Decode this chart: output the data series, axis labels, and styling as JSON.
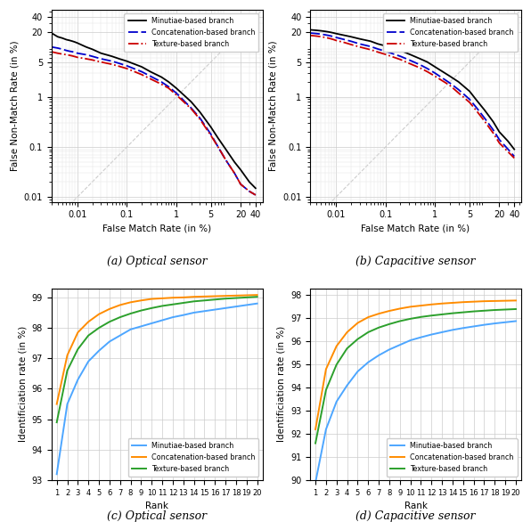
{
  "fig_width": 5.96,
  "fig_height": 5.86,
  "dpi": 100,
  "roc_xlim": [
    0.003,
    55
  ],
  "roc_ylim": [
    0.008,
    55
  ],
  "optical_roc": {
    "minutiae": {
      "fmr": [
        0.003,
        0.004,
        0.005,
        0.006,
        0.007,
        0.008,
        0.009,
        0.01,
        0.015,
        0.02,
        0.03,
        0.05,
        0.07,
        0.1,
        0.2,
        0.3,
        0.5,
        0.7,
        1,
        2,
        3,
        5,
        7,
        10,
        15,
        20,
        30,
        40
      ],
      "fnmr": [
        19,
        16,
        15,
        14,
        13.5,
        13,
        12.5,
        12,
        10,
        9,
        7.5,
        6.5,
        5.8,
        5.2,
        4.0,
        3.2,
        2.5,
        2.0,
        1.5,
        0.8,
        0.5,
        0.25,
        0.15,
        0.09,
        0.05,
        0.035,
        0.02,
        0.015
      ]
    },
    "concat": {
      "fmr": [
        0.003,
        0.004,
        0.005,
        0.006,
        0.007,
        0.008,
        0.009,
        0.01,
        0.015,
        0.02,
        0.03,
        0.05,
        0.07,
        0.1,
        0.2,
        0.3,
        0.5,
        0.7,
        1,
        2,
        3,
        5,
        7,
        10,
        15,
        20,
        30,
        40
      ],
      "fnmr": [
        10,
        9.5,
        9,
        8.5,
        8.2,
        8.0,
        7.8,
        7.5,
        7.0,
        6.5,
        5.8,
        5.2,
        4.7,
        4.2,
        3.2,
        2.6,
        2.0,
        1.6,
        1.2,
        0.6,
        0.38,
        0.18,
        0.1,
        0.055,
        0.03,
        0.018,
        0.013,
        0.011
      ]
    },
    "texture": {
      "fmr": [
        0.003,
        0.004,
        0.005,
        0.006,
        0.007,
        0.008,
        0.009,
        0.01,
        0.015,
        0.02,
        0.03,
        0.05,
        0.07,
        0.1,
        0.2,
        0.3,
        0.5,
        0.7,
        1,
        2,
        3,
        5,
        7,
        10,
        15,
        20,
        30,
        40
      ],
      "fnmr": [
        8.0,
        7.5,
        7.2,
        7.0,
        6.8,
        6.6,
        6.4,
        6.2,
        5.8,
        5.5,
        5.0,
        4.5,
        4.1,
        3.7,
        2.8,
        2.3,
        1.8,
        1.5,
        1.1,
        0.58,
        0.36,
        0.17,
        0.1,
        0.055,
        0.03,
        0.018,
        0.013,
        0.011
      ]
    }
  },
  "capacitive_roc": {
    "minutiae": {
      "fmr": [
        0.003,
        0.004,
        0.005,
        0.006,
        0.007,
        0.008,
        0.009,
        0.01,
        0.015,
        0.02,
        0.03,
        0.05,
        0.07,
        0.1,
        0.2,
        0.3,
        0.5,
        0.7,
        1,
        2,
        3,
        5,
        7,
        10,
        15,
        20,
        30,
        40
      ],
      "fnmr": [
        22,
        21.5,
        21,
        20.5,
        20,
        19.5,
        19,
        18.5,
        17,
        16,
        14.5,
        13,
        11.5,
        10.5,
        8.5,
        7.2,
        5.8,
        5.0,
        4.0,
        2.6,
        2.0,
        1.3,
        0.85,
        0.55,
        0.32,
        0.2,
        0.13,
        0.09
      ]
    },
    "concat": {
      "fmr": [
        0.003,
        0.004,
        0.005,
        0.006,
        0.007,
        0.008,
        0.009,
        0.01,
        0.015,
        0.02,
        0.03,
        0.05,
        0.07,
        0.1,
        0.2,
        0.3,
        0.5,
        0.7,
        1,
        2,
        3,
        5,
        7,
        10,
        15,
        20,
        30,
        40
      ],
      "fnmr": [
        19,
        18.5,
        18,
        17.5,
        17,
        16.5,
        16,
        15.5,
        14,
        13,
        11.5,
        10.2,
        9.1,
        8.2,
        6.5,
        5.5,
        4.4,
        3.7,
        3.0,
        1.9,
        1.4,
        0.9,
        0.6,
        0.38,
        0.22,
        0.14,
        0.09,
        0.065
      ]
    },
    "texture": {
      "fmr": [
        0.003,
        0.004,
        0.005,
        0.006,
        0.007,
        0.008,
        0.009,
        0.01,
        0.015,
        0.02,
        0.03,
        0.05,
        0.07,
        0.1,
        0.2,
        0.3,
        0.5,
        0.7,
        1,
        2,
        3,
        5,
        7,
        10,
        15,
        20,
        30,
        40
      ],
      "fnmr": [
        17,
        16.5,
        16,
        15.5,
        15,
        14.5,
        14,
        13.5,
        12.2,
        11.2,
        10.0,
        8.8,
        7.9,
        7.1,
        5.6,
        4.7,
        3.8,
        3.2,
        2.6,
        1.7,
        1.2,
        0.78,
        0.52,
        0.33,
        0.19,
        0.12,
        0.08,
        0.06
      ]
    }
  },
  "optical_cmc": {
    "ranks": [
      1,
      2,
      3,
      4,
      5,
      6,
      7,
      8,
      9,
      10,
      11,
      12,
      13,
      14,
      15,
      16,
      17,
      18,
      19,
      20
    ],
    "minutiae": [
      93.2,
      95.5,
      96.3,
      96.9,
      97.25,
      97.55,
      97.75,
      97.95,
      98.05,
      98.15,
      98.25,
      98.35,
      98.42,
      98.5,
      98.55,
      98.6,
      98.65,
      98.7,
      98.75,
      98.8
    ],
    "concat": [
      95.5,
      97.1,
      97.85,
      98.2,
      98.45,
      98.62,
      98.75,
      98.84,
      98.9,
      98.95,
      98.97,
      98.99,
      99.0,
      99.02,
      99.03,
      99.04,
      99.05,
      99.06,
      99.07,
      99.08
    ],
    "texture": [
      94.9,
      96.6,
      97.3,
      97.75,
      98.0,
      98.2,
      98.35,
      98.47,
      98.57,
      98.65,
      98.72,
      98.77,
      98.82,
      98.87,
      98.9,
      98.93,
      98.96,
      98.98,
      99.0,
      99.02
    ],
    "ylim": [
      93,
      99.3
    ],
    "yticks": [
      93,
      94,
      95,
      96,
      97,
      98,
      99
    ]
  },
  "capacitive_cmc": {
    "ranks": [
      1,
      2,
      3,
      4,
      5,
      6,
      7,
      8,
      9,
      10,
      11,
      12,
      13,
      14,
      15,
      16,
      17,
      18,
      19,
      20
    ],
    "minutiae": [
      89.9,
      92.2,
      93.4,
      94.1,
      94.7,
      95.1,
      95.4,
      95.65,
      95.85,
      96.05,
      96.18,
      96.3,
      96.4,
      96.5,
      96.58,
      96.65,
      96.72,
      96.78,
      96.83,
      96.88
    ],
    "concat": [
      92.2,
      94.8,
      95.8,
      96.4,
      96.8,
      97.05,
      97.2,
      97.32,
      97.42,
      97.5,
      97.55,
      97.6,
      97.64,
      97.67,
      97.7,
      97.72,
      97.74,
      97.75,
      97.76,
      97.77
    ],
    "texture": [
      91.6,
      93.9,
      95.0,
      95.7,
      96.1,
      96.4,
      96.6,
      96.75,
      96.88,
      96.98,
      97.06,
      97.12,
      97.17,
      97.22,
      97.26,
      97.3,
      97.33,
      97.36,
      97.38,
      97.4
    ],
    "ylim": [
      90,
      98.3
    ],
    "yticks": [
      90,
      91,
      92,
      93,
      94,
      95,
      96,
      97,
      98
    ]
  },
  "colors": {
    "minutiae": "#000000",
    "concat": "#0000cc",
    "texture": "#cc0000"
  },
  "cmc_colors": {
    "minutiae": "#4da6ff",
    "concat": "#ff8c00",
    "texture": "#2ca02c"
  },
  "label_minutiae": "Minutiae-based branch",
  "label_concat": "Concatenation-based branch",
  "label_texture": "Texture-based branch",
  "caption_a": "(a) Optical sensor",
  "caption_b": "(b) Capacitive sensor",
  "caption_c": "(c) Optical sensor",
  "caption_d": "(d) Capacitive sensor",
  "roc_xlabel": "False Match Rate (in %)",
  "roc_ylabel": "False Non-Match Rate (in %)",
  "cmc_xlabel": "Rank",
  "cmc_ylabel": "Identificiation rate (in %)"
}
